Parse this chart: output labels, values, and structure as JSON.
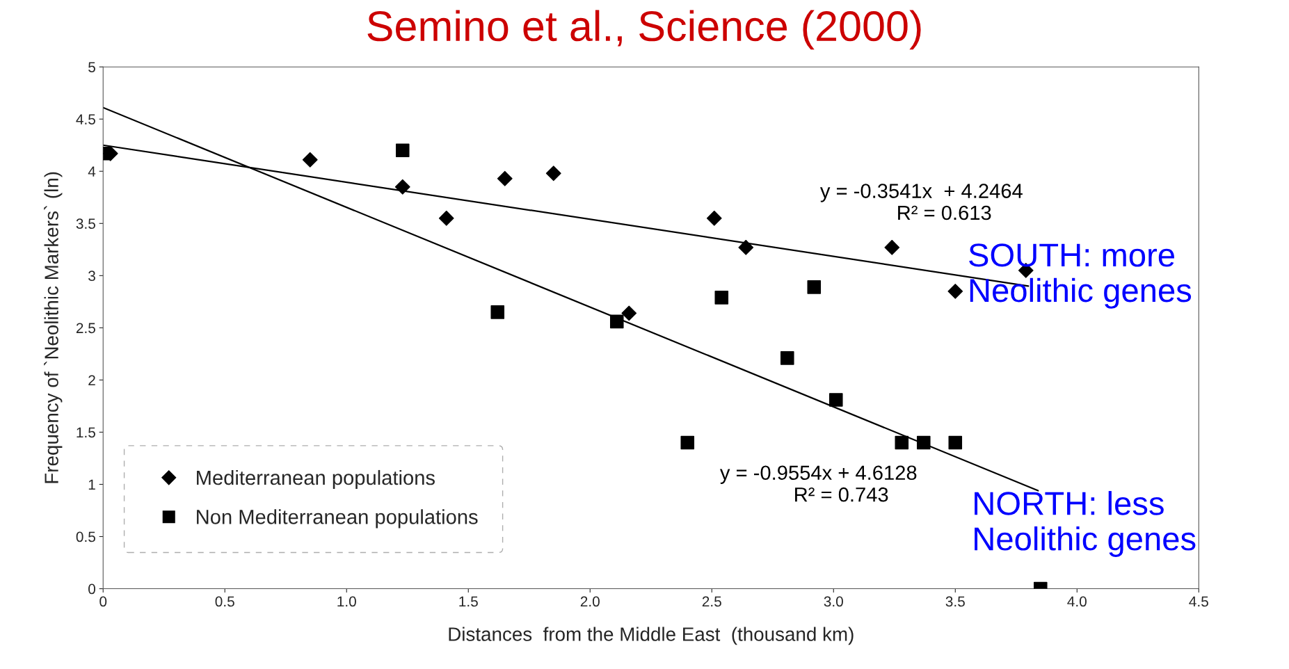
{
  "chart_data": {
    "type": "scatter",
    "title": "Semino et al., Science (2000)",
    "xlabel": "Distances  from the Middle East  (thousand km)",
    "ylabel": "Frequency of `Neolithic Markers` (ln)",
    "series": [
      {
        "name": "Mediterranean populations",
        "color": "#000000",
        "marker": "diamond",
        "x": [
          0.03,
          0.85,
          1.23,
          1.41,
          1.65,
          1.85,
          2.16,
          2.51,
          2.64,
          3.24,
          3.5,
          3.79
        ],
        "values": [
          4.17,
          4.11,
          3.85,
          3.55,
          3.93,
          3.98,
          2.64,
          3.55,
          3.27,
          3.27,
          2.85,
          3.05
        ]
      },
      {
        "name": "Non Mediterranean populations",
        "color": "#000000",
        "marker": "square",
        "x": [
          0,
          1.23,
          1.62,
          2.11,
          2.54,
          2.92,
          2.81,
          3.01,
          2.4,
          3.28,
          3.37,
          3.5,
          3.85
        ],
        "values": [
          4.17,
          4.2,
          2.65,
          2.56,
          2.79,
          2.89,
          2.21,
          1.81,
          1.4,
          1.4,
          1.4,
          1.4,
          0
        ]
      },
      {
        "type": "line",
        "color": "#000000",
        "x": [
          0,
          3.8
        ],
        "values": [
          4.25,
          2.9
        ]
      },
      {
        "type": "line",
        "color": "#000000",
        "x": [
          0,
          3.84
        ],
        "values": [
          4.61,
          0.94
        ]
      }
    ],
    "annotations": [
      "y = -0.3541x  + 4.2464\n        R² = 0.613",
      "y = -0.9554x + 4.6128\n        R² = 0.743",
      "SOUTH: more\nNeolithic genes",
      "NORTH: less\nNeolithic genes"
    ],
    "xlim": [
      0,
      4.5
    ],
    "ylim": [
      0,
      5
    ],
    "xticks": [
      0,
      0.5,
      {
        "value": 1,
        "label": "1.0"
      },
      1.5,
      {
        "value": 2,
        "label": "2.0"
      },
      2.5,
      {
        "value": 3,
        "label": "3.0"
      },
      3.5,
      {
        "value": 4,
        "label": "4.0"
      },
      4.5
    ],
    "yticks": [
      0,
      0.5,
      1,
      1.5,
      2,
      2.5,
      3,
      3.5,
      4,
      4.5,
      5
    ],
    "grid": false,
    "legend": "bottom left"
  }
}
